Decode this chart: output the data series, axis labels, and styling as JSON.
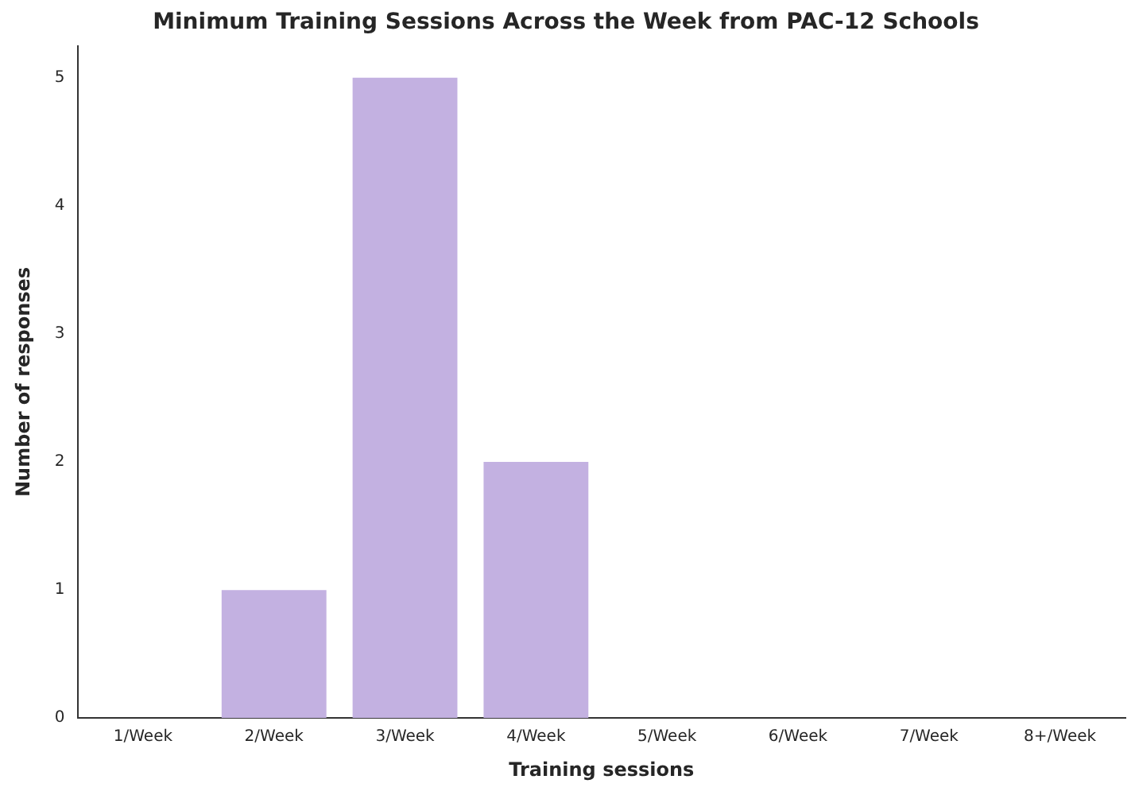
{
  "chart_data": {
    "type": "bar",
    "title": "Minimum Training Sessions Across the Week from PAC-12 Schools",
    "xlabel": "Training sessions",
    "ylabel": "Number of responses",
    "categories": [
      "1/Week",
      "2/Week",
      "3/Week",
      "4/Week",
      "5/Week",
      "6/Week",
      "7/Week",
      "8+/Week"
    ],
    "values": [
      0,
      1,
      5,
      2,
      0,
      0,
      0,
      0
    ],
    "color": "#c3b1e1",
    "ylim": [
      0,
      5.25
    ],
    "yticks": [
      0,
      1,
      2,
      3,
      4,
      5
    ],
    "grid": false,
    "legend": false
  }
}
